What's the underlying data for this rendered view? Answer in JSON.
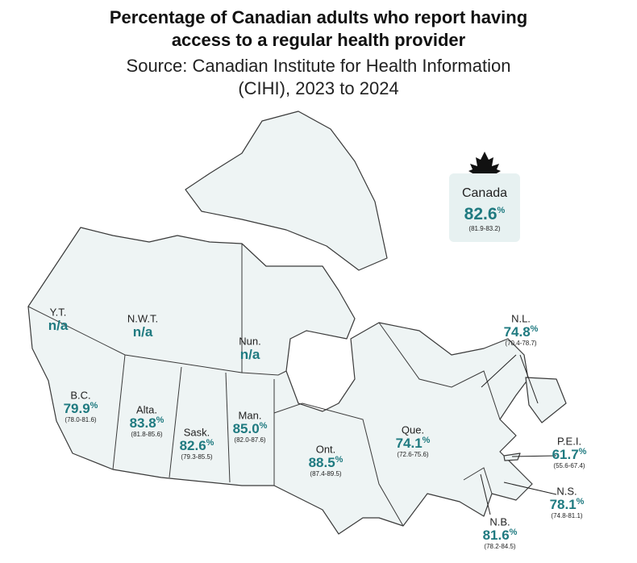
{
  "header": {
    "title": "Percentage of Canadian adults who report having access to a regular health provider",
    "subtitle": "Source: Canadian Institute for Health Information (CIHI), 2023 to 2024"
  },
  "national": {
    "name": "Canada",
    "value": "82.6",
    "unit": "%",
    "range": "(81.9-83.2)"
  },
  "regions": [
    {
      "name": "Y.T.",
      "value": "n/a"
    },
    {
      "name": "N.W.T.",
      "value": "n/a"
    },
    {
      "name": "Nun.",
      "value": "n/a"
    },
    {
      "name": "B.C.",
      "value": "79.9",
      "unit": "%",
      "range": "(78.0-81.6)"
    },
    {
      "name": "Alta.",
      "value": "83.8",
      "unit": "%",
      "range": "(81.8-85.6)"
    },
    {
      "name": "Sask.",
      "value": "82.6",
      "unit": "%",
      "range": "(79.3-85.5)"
    },
    {
      "name": "Man.",
      "value": "85.0",
      "unit": "%",
      "range": "(82.0-87.6)"
    },
    {
      "name": "Ont.",
      "value": "88.5",
      "unit": "%",
      "range": "(87.4-89.5)"
    },
    {
      "name": "Que.",
      "value": "74.1",
      "unit": "%",
      "range": "(72.6-75.6)"
    },
    {
      "name": "N.L.",
      "value": "74.8",
      "unit": "%",
      "range": "(70.4-78.7)"
    },
    {
      "name": "P.E.I.",
      "value": "61.7",
      "unit": "%",
      "range": "(55.6-67.4)"
    },
    {
      "name": "N.S.",
      "value": "78.1",
      "unit": "%",
      "range": "(74.8-81.1)"
    },
    {
      "name": "N.B.",
      "value": "81.6",
      "unit": "%",
      "range": "(78.2-84.5)"
    }
  ]
}
